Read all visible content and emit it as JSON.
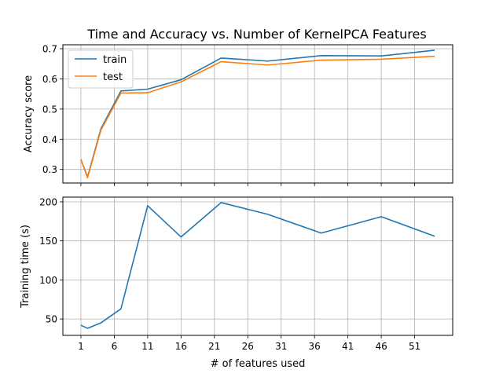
{
  "chart_data": [
    {
      "type": "line",
      "title": "Time and Accuracy vs. Number of KernelPCA Features",
      "ylabel": "Accuracy score",
      "xlabel": "",
      "ylim": [
        0.255,
        0.713
      ],
      "yticks": [
        0.3,
        0.4,
        0.5,
        0.6,
        0.7
      ],
      "ytick_labels": [
        "0.3",
        "0.4",
        "0.5",
        "0.6",
        "0.7"
      ],
      "grid": true,
      "legend": "upper-left",
      "x": [
        1,
        2,
        4,
        7,
        11,
        16,
        22,
        29,
        37,
        46,
        54
      ],
      "series": [
        {
          "name": "train",
          "color": "#1f77b4",
          "values": [
            0.333,
            0.275,
            0.435,
            0.56,
            0.566,
            0.597,
            0.669,
            0.659,
            0.677,
            0.676,
            0.695
          ]
        },
        {
          "name": "test",
          "color": "#ff7f0e",
          "values": [
            0.333,
            0.272,
            0.43,
            0.553,
            0.554,
            0.59,
            0.657,
            0.646,
            0.662,
            0.665,
            0.675
          ]
        }
      ]
    },
    {
      "type": "line",
      "title": "",
      "ylabel": "Training time (s)",
      "xlabel": "# of features used",
      "ylim": [
        29,
        206
      ],
      "yticks": [
        50,
        100,
        150,
        200
      ],
      "ytick_labels": [
        "50",
        "100",
        "150",
        "200"
      ],
      "grid": true,
      "x": [
        1,
        2,
        4,
        7,
        11,
        16,
        22,
        29,
        37,
        46,
        54
      ],
      "series": [
        {
          "color": "#1f77b4",
          "values": [
            42,
            38,
            45,
            63,
            195,
            155,
            199,
            184,
            160,
            181,
            156
          ]
        }
      ]
    }
  ],
  "x_axis": {
    "xlim": [
      -1.7,
      56.7
    ],
    "ticks": [
      1,
      6,
      11,
      16,
      21,
      26,
      31,
      36,
      41,
      46,
      51
    ],
    "tick_labels": [
      "1",
      "6",
      "11",
      "16",
      "21",
      "26",
      "31",
      "36",
      "41",
      "46",
      "51"
    ]
  },
  "style": {
    "grid_color": "#b0b0b0",
    "axis_color": "#000000"
  }
}
